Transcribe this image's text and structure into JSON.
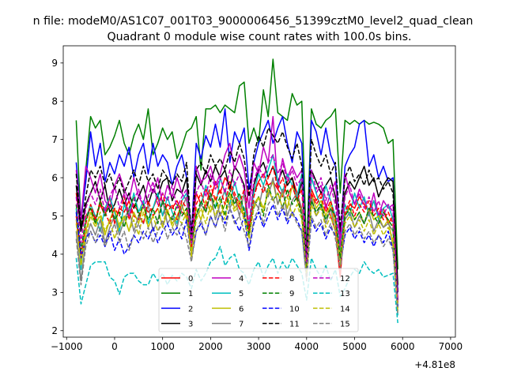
{
  "chart_data": {
    "type": "line",
    "suptitle": "n file: modeM0/AS1C07_001T03_9000006456_51399cztM0_level2_quad_clean",
    "title": "Quadrant 0 module wise count rates with 100.0s bins.",
    "xlabel": "",
    "ylabel": "",
    "offset_text": "+4.81e8",
    "xlim": [
      -1070,
      7100
    ],
    "ylim": [
      1.83,
      9.45
    ],
    "xticks": [
      -1000,
      0,
      1000,
      2000,
      3000,
      4000,
      5000,
      6000,
      7000
    ],
    "xtick_labels": [
      "−1000",
      "0",
      "1000",
      "2000",
      "3000",
      "4000",
      "5000",
      "6000",
      "7000"
    ],
    "yticks": [
      2,
      3,
      4,
      5,
      6,
      7,
      8,
      9
    ],
    "ytick_labels": [
      "2",
      "3",
      "4",
      "5",
      "6",
      "7",
      "8",
      "9"
    ],
    "legend_placement": "lower-center",
    "legend_columns": 4,
    "grid": false,
    "x_start": -800,
    "x_step": 100,
    "series": [
      {
        "name": "0",
        "color": "#ff0000",
        "dash": "solid"
      },
      {
        "name": "1",
        "color": "#008000",
        "dash": "solid"
      },
      {
        "name": "2",
        "color": "#0000ff",
        "dash": "solid"
      },
      {
        "name": "3",
        "color": "#000000",
        "dash": "solid"
      },
      {
        "name": "4",
        "color": "#bf00bf",
        "dash": "solid"
      },
      {
        "name": "5",
        "color": "#00bfbf",
        "dash": "solid"
      },
      {
        "name": "6",
        "color": "#bfbf00",
        "dash": "solid"
      },
      {
        "name": "7",
        "color": "#808080",
        "dash": "solid"
      },
      {
        "name": "8",
        "color": "#ff0000",
        "dash": "dashed"
      },
      {
        "name": "9",
        "color": "#008000",
        "dash": "dashed"
      },
      {
        "name": "10",
        "color": "#0000ff",
        "dash": "dashed"
      },
      {
        "name": "11",
        "color": "#000000",
        "dash": "dashed"
      },
      {
        "name": "12",
        "color": "#bf00bf",
        "dash": "dashed"
      },
      {
        "name": "13",
        "color": "#00bfbf",
        "dash": "dashed"
      },
      {
        "name": "14",
        "color": "#bfbf00",
        "dash": "dashed"
      },
      {
        "name": "15",
        "color": "#808080",
        "dash": "dashed"
      }
    ],
    "series_values": {
      "0": [
        5.6,
        4.7,
        5.0,
        5.2,
        4.9,
        5.3,
        5.0,
        5.5,
        4.8,
        5.2,
        5.1,
        5.4,
        5.0,
        4.9,
        5.3,
        5.1,
        5.2,
        5.5,
        5.0,
        5.3,
        5.2,
        5.4,
        5.1,
        5.0,
        4.4,
        5.6,
        5.3,
        5.7,
        5.4,
        5.9,
        5.6,
        6.0,
        5.8,
        5.5,
        5.2,
        5.0,
        5.8,
        5.6,
        5.9,
        6.1,
        5.8,
        5.9,
        5.7,
        5.5,
        5.9,
        6.0,
        5.6,
        5.1,
        3.8,
        5.7,
        5.4,
        5.6,
        5.3,
        5.0,
        4.6,
        3.4,
        5.0,
        5.3,
        5.2,
        5.5,
        5.3,
        5.1,
        5.4,
        5.0,
        5.2,
        4.8,
        5.0,
        2.8
      ],
      "1": [
        7.5,
        4.8,
        6.2,
        7.6,
        7.3,
        7.5,
        6.6,
        6.8,
        7.1,
        7.5,
        6.9,
        6.6,
        7.1,
        7.4,
        7.0,
        7.8,
        6.6,
        6.9,
        7.3,
        7.0,
        7.2,
        6.5,
        6.8,
        7.2,
        7.3,
        7.6,
        6.2,
        7.8,
        7.8,
        7.9,
        7.7,
        7.9,
        7.8,
        7.7,
        8.4,
        8.5,
        6.9,
        7.3,
        6.9,
        8.3,
        7.6,
        9.1,
        7.7,
        7.6,
        7.5,
        8.2,
        7.9,
        8.0,
        4.0,
        7.8,
        7.4,
        7.3,
        7.5,
        7.6,
        7.8,
        5.6,
        7.5,
        7.4,
        7.5,
        7.4,
        7.5,
        7.4,
        7.45,
        7.4,
        7.3,
        6.9,
        7.0,
        3.6
      ],
      "2": [
        6.4,
        4.9,
        5.9,
        7.2,
        6.3,
        6.9,
        5.9,
        6.4,
        6.1,
        6.6,
        6.3,
        6.8,
        6.0,
        6.6,
        6.9,
        6.1,
        6.9,
        6.3,
        6.6,
        6.4,
        5.8,
        6.3,
        6.6,
        6.0,
        4.5,
        6.9,
        6.5,
        7.1,
        6.8,
        7.4,
        6.8,
        7.8,
        6.4,
        7.2,
        6.9,
        7.3,
        5.7,
        6.4,
        6.9,
        7.2,
        7.5,
        6.9,
        7.3,
        7.6,
        6.9,
        6.4,
        7.2,
        6.9,
        3.5,
        7.5,
        7.2,
        6.6,
        7.3,
        6.6,
        6.3,
        4.4,
        6.3,
        6.6,
        6.8,
        7.4,
        7.5,
        6.3,
        6.6,
        6.0,
        6.3,
        5.9,
        6.0,
        3.0
      ],
      "3": [
        5.8,
        4.6,
        5.3,
        5.6,
        5.9,
        5.4,
        5.8,
        5.1,
        5.3,
        5.7,
        5.3,
        5.6,
        5.2,
        5.5,
        5.8,
        5.3,
        5.7,
        5.5,
        5.9,
        6.0,
        5.4,
        5.7,
        5.6,
        6.0,
        4.3,
        6.1,
        5.8,
        6.2,
        5.9,
        6.3,
        6.0,
        6.2,
        5.7,
        6.3,
        6.1,
        5.8,
        4.6,
        5.8,
        6.2,
        6.4,
        6.0,
        6.3,
        5.9,
        6.2,
        5.8,
        6.0,
        5.4,
        5.9,
        3.8,
        6.2,
        5.9,
        5.6,
        5.8,
        6.0,
        5.5,
        4.6,
        5.6,
        5.9,
        5.7,
        6.0,
        6.3,
        5.8,
        6.0,
        5.5,
        5.8,
        6.0,
        5.9,
        3.2
      ],
      "4": [
        6.2,
        4.9,
        6.3,
        6.0,
        5.6,
        6.1,
        5.4,
        5.2,
        5.8,
        6.1,
        5.7,
        5.4,
        6.0,
        5.5,
        5.3,
        5.9,
        5.6,
        6.0,
        5.3,
        5.8,
        5.5,
        6.0,
        5.6,
        5.4,
        4.5,
        6.3,
        5.9,
        6.0,
        6.3,
        5.8,
        6.1,
        6.6,
        6.9,
        6.2,
        6.6,
        6.2,
        5.2,
        6.4,
        6.1,
        6.8,
        6.4,
        7.6,
        5.7,
        6.5,
        6.0,
        6.3,
        6.0,
        6.2,
        3.9,
        6.0,
        5.6,
        5.8,
        5.2,
        5.6,
        5.9,
        4.3,
        6.1,
        5.6,
        5.3,
        5.7,
        5.4,
        5.1,
        5.6,
        5.0,
        5.4,
        5.2,
        5.3,
        2.8
      ],
      "5": [
        5.2,
        3.6,
        4.9,
        5.3,
        5.0,
        4.6,
        5.2,
        5.5,
        5.1,
        4.6,
        5.3,
        5.0,
        5.6,
        5.1,
        5.4,
        4.8,
        5.2,
        5.6,
        5.0,
        5.5,
        5.1,
        4.8,
        5.4,
        5.6,
        4.1,
        5.0,
        5.3,
        5.8,
        5.5,
        5.2,
        6.0,
        5.6,
        5.3,
        5.9,
        5.4,
        5.2,
        4.8,
        5.6,
        6.1,
        5.8,
        6.2,
        6.6,
        5.9,
        5.6,
        6.1,
        5.8,
        5.5,
        6.1,
        3.7,
        6.0,
        5.6,
        5.2,
        5.8,
        5.4,
        5.0,
        4.1,
        5.3,
        5.0,
        5.6,
        5.2,
        5.5,
        5.0,
        5.4,
        4.9,
        5.2,
        5.3,
        4.9,
        2.4
      ],
      "6": [
        4.9,
        3.8,
        4.6,
        5.1,
        4.8,
        5.0,
        4.5,
        4.9,
        5.2,
        4.7,
        5.0,
        4.6,
        5.1,
        4.8,
        5.3,
        4.7,
        5.0,
        5.2,
        4.7,
        5.1,
        4.8,
        5.0,
        5.3,
        4.9,
        4.0,
        5.2,
        4.9,
        5.4,
        5.1,
        5.5,
        5.0,
        5.3,
        5.6,
        5.2,
        5.4,
        5.0,
        4.6,
        5.3,
        5.5,
        5.2,
        5.6,
        5.9,
        5.3,
        5.6,
        5.2,
        5.8,
        5.4,
        5.1,
        3.5,
        5.6,
        5.2,
        5.4,
        5.0,
        5.3,
        4.8,
        4.0,
        5.0,
        5.2,
        4.9,
        5.1,
        4.8,
        5.2,
        4.9,
        5.0,
        4.7,
        4.9,
        4.2,
        2.5
      ],
      "7": [
        4.6,
        3.3,
        4.4,
        4.8,
        4.5,
        4.9,
        4.3,
        4.7,
        5.0,
        4.5,
        4.9,
        5.2,
        4.6,
        5.0,
        4.8,
        5.3,
        4.6,
        4.9,
        5.4,
        4.8,
        5.0,
        4.7,
        5.2,
        5.5,
        4.2,
        5.0,
        5.3,
        5.1,
        5.6,
        4.9,
        5.3,
        5.7,
        5.2,
        5.5,
        5.0,
        5.6,
        4.5,
        5.4,
        5.2,
        5.8,
        5.5,
        6.0,
        5.3,
        5.7,
        5.0,
        5.4,
        5.6,
        5.2,
        3.4,
        5.5,
        5.0,
        5.3,
        4.8,
        5.2,
        4.6,
        3.8,
        4.9,
        5.1,
        4.7,
        5.0,
        4.8,
        5.1,
        4.6,
        4.9,
        4.7,
        4.8,
        4.6,
        2.6
      ],
      "8": [
        5.0,
        4.0,
        4.8,
        5.3,
        4.9,
        5.4,
        5.1,
        4.8,
        5.2,
        5.0,
        5.5,
        4.9,
        5.3,
        5.1,
        4.8,
        5.4,
        5.0,
        5.2,
        5.6,
        5.1,
        5.3,
        4.9,
        5.4,
        5.2,
        4.2,
        5.3,
        5.6,
        5.2,
        5.8,
        5.4,
        5.7,
        5.3,
        5.9,
        5.6,
        5.3,
        5.7,
        4.6,
        5.5,
        5.9,
        5.6,
        6.0,
        6.3,
        5.7,
        6.0,
        5.5,
        5.8,
        5.4,
        5.7,
        3.6,
        5.6,
        5.3,
        5.5,
        5.1,
        5.4,
        4.9,
        3.5,
        5.1,
        5.4,
        5.0,
        5.3,
        5.1,
        5.4,
        5.0,
        5.2,
        4.9,
        5.1,
        4.8,
        2.7
      ],
      "9": [
        5.3,
        4.1,
        4.9,
        5.2,
        4.8,
        5.4,
        5.0,
        5.3,
        4.9,
        5.1,
        4.7,
        5.2,
        5.5,
        5.0,
        5.3,
        4.9,
        5.2,
        4.8,
        5.4,
        5.1,
        4.9,
        5.3,
        5.0,
        5.2,
        4.3,
        5.0,
        5.4,
        5.1,
        5.6,
        5.2,
        5.5,
        5.0,
        5.7,
        5.3,
        5.6,
        5.1,
        4.5,
        5.2,
        5.5,
        5.0,
        5.8,
        5.4,
        5.6,
        5.2,
        5.7,
        5.3,
        5.5,
        5.0,
        3.6,
        5.4,
        5.1,
        5.3,
        4.9,
        5.2,
        5.0,
        3.9,
        5.0,
        5.2,
        4.9,
        5.1,
        4.8,
        5.2,
        5.0,
        4.8,
        5.1,
        4.9,
        4.7,
        2.6
      ],
      "10": [
        5.1,
        3.9,
        4.4,
        4.6,
        4.3,
        4.5,
        4.2,
        4.6,
        4.1,
        4.4,
        4.0,
        4.2,
        4.5,
        4.3,
        4.6,
        4.4,
        4.7,
        4.3,
        4.6,
        4.8,
        4.5,
        4.7,
        4.4,
        4.9,
        3.9,
        4.6,
        4.8,
        4.5,
        5.0,
        4.7,
        5.1,
        4.8,
        5.2,
        4.9,
        4.6,
        5.0,
        4.1,
        4.8,
        5.1,
        4.7,
        5.0,
        5.3,
        4.9,
        5.2,
        4.8,
        5.1,
        4.9,
        4.6,
        3.4,
        4.9,
        4.6,
        4.8,
        4.4,
        4.7,
        4.5,
        3.7,
        4.5,
        4.7,
        4.4,
        4.6,
        4.3,
        4.5,
        4.2,
        4.5,
        4.3,
        4.6,
        4.1,
        2.6
      ],
      "11": [
        6.1,
        4.7,
        5.5,
        6.2,
        6.0,
        6.3,
        5.8,
        6.1,
        5.7,
        6.0,
        5.6,
        5.9,
        6.2,
        5.8,
        6.3,
        5.9,
        6.1,
        5.7,
        6.2,
        6.0,
        5.8,
        6.1,
        5.9,
        6.4,
        4.5,
        6.2,
        6.4,
        6.1,
        6.6,
        6.3,
        6.5,
        6.2,
        6.7,
        6.4,
        6.9,
        6.5,
        5.5,
        6.6,
        7.1,
        6.8,
        7.3,
        7.1,
        6.9,
        7.2,
        6.8,
        6.5,
        6.9,
        6.3,
        3.8,
        7.0,
        6.6,
        6.3,
        6.6,
        6.1,
        6.4,
        4.7,
        6.0,
        6.3,
        5.9,
        6.1,
        5.8,
        6.2,
        5.9,
        6.0,
        5.7,
        5.9,
        5.6,
        3.0
      ],
      "12": [
        5.5,
        4.3,
        5.2,
        5.6,
        5.3,
        5.7,
        5.1,
        5.5,
        5.8,
        5.2,
        5.6,
        5.0,
        5.4,
        5.7,
        5.2,
        5.5,
        5.9,
        5.3,
        5.6,
        5.4,
        5.8,
        5.2,
        5.5,
        5.7,
        4.3,
        5.6,
        5.9,
        5.5,
        6.1,
        5.7,
        6.0,
        5.6,
        6.2,
        5.8,
        6.1,
        5.7,
        4.8,
        5.9,
        6.3,
        6.0,
        6.4,
        6.6,
        6.1,
        6.4,
        5.9,
        6.2,
        5.8,
        6.0,
        3.8,
        6.2,
        5.7,
        6.0,
        5.4,
        5.8,
        5.3,
        4.2,
        5.5,
        5.8,
        5.3,
        5.6,
        5.2,
        5.5,
        5.1,
        5.4,
        5.0,
        5.3,
        5.1,
        2.8
      ],
      "13": [
        3.9,
        2.7,
        3.2,
        3.7,
        3.8,
        3.8,
        3.8,
        3.4,
        3.3,
        2.95,
        3.4,
        3.5,
        3.5,
        3.3,
        3.2,
        3.2,
        3.5,
        3.3,
        3.5,
        3.2,
        3.45,
        3.3,
        3.5,
        3.4,
        3.1,
        3.6,
        3.3,
        3.5,
        3.8,
        3.9,
        4.2,
        3.7,
        3.9,
        4.0,
        3.6,
        3.5,
        3.2,
        3.6,
        3.8,
        3.4,
        3.7,
        3.9,
        3.5,
        3.8,
        3.6,
        3.9,
        3.7,
        3.5,
        2.8,
        3.9,
        3.6,
        3.4,
        3.7,
        3.3,
        3.6,
        2.9,
        3.1,
        3.4,
        3.6,
        3.5,
        3.8,
        3.6,
        3.5,
        3.6,
        3.4,
        3.45,
        3.5,
        2.2
      ],
      "14": [
        4.8,
        3.7,
        4.5,
        5.0,
        4.7,
        5.1,
        4.6,
        4.9,
        4.4,
        4.8,
        5.0,
        4.6,
        4.9,
        4.5,
        5.1,
        4.7,
        5.0,
        4.6,
        4.8,
        5.2,
        4.7,
        5.0,
        4.8,
        5.1,
        3.9,
        4.9,
        5.2,
        4.8,
        5.3,
        5.0,
        5.4,
        4.9,
        5.5,
        5.1,
        5.3,
        4.9,
        4.4,
        5.2,
        5.5,
        5.1,
        5.7,
        5.4,
        5.6,
        5.2,
        5.5,
        5.0,
        5.3,
        4.9,
        3.4,
        5.3,
        5.0,
        5.2,
        4.7,
        5.0,
        4.6,
        3.7,
        4.8,
        5.0,
        4.7,
        4.9,
        4.6,
        4.9,
        4.5,
        4.8,
        4.5,
        4.7,
        4.4,
        2.5
      ],
      "15": [
        4.4,
        3.2,
        4.2,
        4.6,
        4.3,
        4.7,
        4.2,
        4.5,
        4.8,
        4.3,
        4.6,
        4.1,
        4.5,
        4.8,
        4.4,
        4.7,
        4.3,
        4.6,
        4.9,
        4.4,
        4.7,
        4.5,
        4.8,
        4.4,
        3.8,
        4.6,
        4.9,
        4.5,
        5.0,
        4.7,
        5.1,
        4.6,
        5.2,
        4.8,
        5.0,
        4.6,
        4.2,
        4.9,
        5.2,
        4.8,
        5.3,
        5.5,
        5.0,
        5.3,
        4.9,
        5.1,
        4.8,
        4.6,
        3.3,
        5.0,
        4.7,
        4.9,
        4.5,
        4.8,
        4.4,
        3.6,
        4.6,
        4.8,
        4.5,
        4.7,
        4.4,
        4.6,
        4.3,
        4.5,
        4.2,
        4.4,
        4.1,
        2.4
      ]
    }
  }
}
